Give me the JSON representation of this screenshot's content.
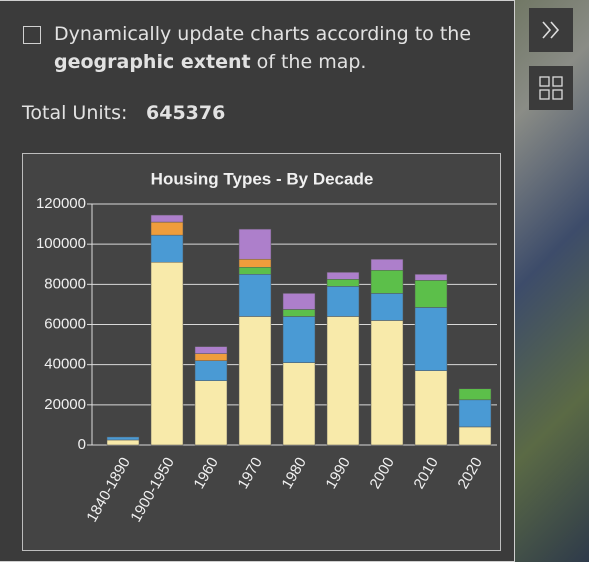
{
  "panel": {
    "option_text": "Dynamically update charts according to the",
    "option_bold": "geographic extent",
    "option_tail": "of the map.",
    "total_label": "Total Units:",
    "total_value": 645376
  },
  "chart_data": {
    "type": "bar",
    "stacked": true,
    "title": "Housing Types - By Decade",
    "categories": [
      "1840-1890",
      "1900-1950",
      "1960",
      "1970",
      "1980",
      "1990",
      "2000",
      "2010",
      "2020"
    ],
    "series": [
      {
        "color": "#f8eaaa",
        "values": [
          2500,
          91000,
          32000,
          64000,
          41000,
          64000,
          62000,
          37000,
          9000
        ]
      },
      {
        "color": "#4a9ad4",
        "values": [
          1500,
          13500,
          10000,
          21000,
          23000,
          15000,
          13500,
          31500,
          13500
        ]
      },
      {
        "color": "#5cbf4a",
        "values": [
          0,
          0,
          0,
          3500,
          3500,
          3500,
          11500,
          13500,
          5500
        ]
      },
      {
        "color": "#ef9d3c",
        "values": [
          0,
          6500,
          3500,
          4000,
          0,
          0,
          0,
          0,
          0
        ]
      },
      {
        "color": "#ad7fcb",
        "values": [
          0,
          3500,
          3500,
          15000,
          8000,
          3500,
          5500,
          3000,
          0
        ]
      }
    ],
    "ylim": [
      0,
      120000
    ],
    "yticks": [
      0,
      20000,
      40000,
      60000,
      80000,
      100000,
      120000
    ],
    "grid": true
  }
}
